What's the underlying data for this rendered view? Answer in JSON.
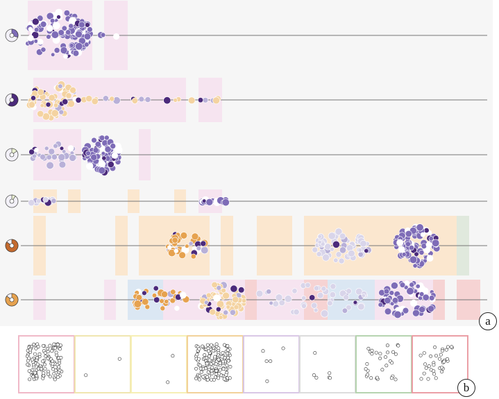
{
  "labels": {
    "a": "a",
    "b": "b"
  },
  "colors": {
    "purple": "#7e6cb7",
    "dark_purple": "#4b2a7b",
    "lavender": "#b8b0d8",
    "light_lavender": "#d9d5ea",
    "orange": "#e6a24f",
    "light_orange": "#f4d3a1",
    "pink_band": "#f6e1ef",
    "orange_band": "#fbe4c8",
    "blue_band": "#d6e4f2",
    "red_band": "#f6cccc",
    "green_band": "#dce6d8"
  },
  "chart_data": [
    {
      "type": "scatter",
      "description_type": "beeswarm timelines",
      "rows": [
        {
          "glyph": {
            "fill_fraction": 0.3,
            "color": "#7e6cb7"
          },
          "clusters": [
            {
              "x": [
                40,
                130
              ],
              "color": "purple",
              "count": 120
            },
            {
              "x": [
                120,
                175
              ],
              "color": "purple",
              "count": 3
            }
          ],
          "bands": [
            {
              "x": [
                40,
                133
              ],
              "color": "pink_band"
            },
            {
              "x": [
                150,
                184
              ],
              "color": "pink_band"
            }
          ]
        },
        {
          "glyph": {
            "fill_fraction": 0.6,
            "color": "#4b2a7b"
          },
          "clusters": [
            {
              "x": [
                42,
                110
              ],
              "color": "light_orange",
              "count": 70
            },
            {
              "x": [
                110,
                320
              ],
              "color": "light_orange",
              "count": 22
            }
          ],
          "bands": [
            {
              "x": [
                48,
                268
              ],
              "color": "pink_band"
            },
            {
              "x": [
                286,
                320
              ],
              "color": "pink_band"
            }
          ]
        },
        {
          "glyph": {
            "fill_fraction": 0.15,
            "color": "#e8efd0"
          },
          "clusters": [
            {
              "x": [
                45,
                110
              ],
              "color": "lavender",
              "count": 28
            },
            {
              "x": [
                122,
                172
              ],
              "color": "purple",
              "count": 70
            }
          ],
          "bands": [
            {
              "x": [
                48,
                117
              ],
              "color": "pink_band"
            },
            {
              "x": [
                200,
                217
              ],
              "color": "pink_band"
            }
          ]
        },
        {
          "glyph": {
            "fill_fraction": 0.1,
            "color": "#e8efd0"
          },
          "clusters": [
            {
              "x": [
                45,
                80
              ],
              "color": "light_lavender",
              "count": 14
            },
            {
              "x": [
                290,
                326
              ],
              "color": "purple",
              "count": 20
            }
          ],
          "bands": [
            {
              "x": [
                48,
                82
              ],
              "color": "orange_band"
            },
            {
              "x": [
                98,
                116
              ],
              "color": "orange_band"
            },
            {
              "x": [
                184,
                201
              ],
              "color": "orange_band"
            },
            {
              "x": [
                251,
                268
              ],
              "color": "orange_band"
            },
            {
              "x": [
                286,
                320
              ],
              "color": "pink_band"
            }
          ]
        },
        {
          "glyph": {
            "fill_fraction": 0.85,
            "color": "#c46a2e"
          },
          "clusters": [
            {
              "x": [
                240,
                296
              ],
              "color": "orange",
              "count": 45
            },
            {
              "x": [
                452,
                532
              ],
              "color": "light_lavender",
              "count": 55
            },
            {
              "x": [
                570,
                630
              ],
              "color": "purple",
              "count": 85
            }
          ],
          "bands": [
            {
              "x": [
                48,
                66
              ],
              "color": "orange_band"
            },
            {
              "x": [
                166,
                184
              ],
              "color": "orange_band"
            },
            {
              "x": [
                200,
                302
              ],
              "color": "orange_band"
            },
            {
              "x": [
                318,
                336
              ],
              "color": "orange_band"
            },
            {
              "x": [
                370,
                421
              ],
              "color": "orange_band"
            },
            {
              "x": [
                438,
                658
              ],
              "color": "orange_band"
            },
            {
              "x": [
                658,
                676
              ],
              "color": "green_band"
            }
          ]
        },
        {
          "glyph": {
            "fill_fraction": 0.85,
            "color": "#e6a24f"
          },
          "clusters": [
            {
              "x": [
                192,
                270
              ],
              "color": "orange",
              "count": 40
            },
            {
              "x": [
                290,
                352
              ],
              "color": "light_orange",
              "count": 75
            },
            {
              "x": [
                370,
                530
              ],
              "color": "light_lavender",
              "count": 45
            },
            {
              "x": [
                548,
                626
              ],
              "color": "purple",
              "count": 65
            }
          ],
          "bands": [
            {
              "x": [
                48,
                66
              ],
              "color": "pink_band"
            },
            {
              "x": [
                150,
                167
              ],
              "color": "pink_band"
            },
            {
              "x": [
                184,
                235
              ],
              "color": "blue_band"
            },
            {
              "x": [
                235,
                285
              ],
              "color": "pink_band"
            },
            {
              "x": [
                285,
                353
              ],
              "color": "pink_band"
            },
            {
              "x": [
                353,
                370
              ],
              "color": "red_band"
            },
            {
              "x": [
                370,
                438
              ],
              "color": "pink_band"
            },
            {
              "x": [
                438,
                472
              ],
              "color": "red_band"
            },
            {
              "x": [
                472,
                540
              ],
              "color": "blue_band"
            },
            {
              "x": [
                540,
                624
              ],
              "color": "pink_band"
            },
            {
              "x": [
                624,
                641
              ],
              "color": "red_band"
            },
            {
              "x": [
                658,
                692
              ],
              "color": "red_band"
            }
          ]
        }
      ]
    },
    {
      "type": "scatter",
      "description_type": "small multiples",
      "panels": [
        {
          "border": "#f0b9c8",
          "points": 130
        },
        {
          "border": "#f0e6b0",
          "points": 2
        },
        {
          "border": "#f6efb5",
          "points": 2
        },
        {
          "border": "#f2d29a",
          "points": 150
        },
        {
          "border": "#d9c8e6",
          "points": 5
        },
        {
          "border": "#dcdcdc",
          "points": 6
        },
        {
          "border": "#b6d4b0",
          "points": 30
        },
        {
          "border": "#eb9fa6",
          "points": 35
        }
      ]
    }
  ]
}
